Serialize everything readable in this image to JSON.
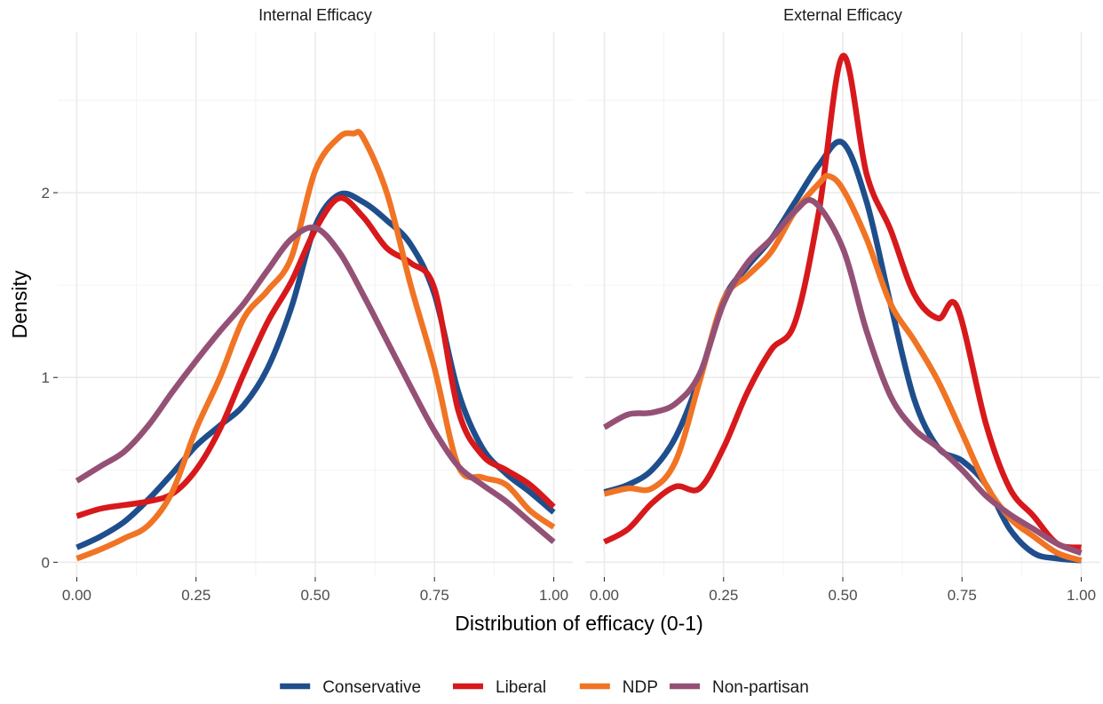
{
  "chart_data": {
    "type": "line",
    "xlabel": "Distribution of efficacy (0-1)",
    "ylabel": "Density",
    "xlim": [
      -0.04,
      1.04
    ],
    "ylim": [
      -0.08,
      2.87
    ],
    "x_ticks": [
      "0.00",
      "0.25",
      "0.50",
      "0.75",
      "1.00"
    ],
    "y_ticks": [
      "0",
      "1",
      "2"
    ],
    "grid": true,
    "legend_position": "bottom",
    "legend": [
      {
        "name": "Conservative",
        "color": "#1f4e8c"
      },
      {
        "name": "Liberal",
        "color": "#d7191c"
      },
      {
        "name": "NDP",
        "color": "#f07424"
      },
      {
        "name": "Non-partisan",
        "color": "#945175"
      }
    ],
    "panels": [
      {
        "title": "Internal Efficacy",
        "series": [
          {
            "name": "Conservative",
            "color": "#1f4e8c",
            "x": [
              0,
              0.05,
              0.1,
              0.15,
              0.2,
              0.25,
              0.3,
              0.35,
              0.4,
              0.45,
              0.5,
              0.55,
              0.6,
              0.65,
              0.7,
              0.75,
              0.8,
              0.85,
              0.9,
              0.95,
              1.0
            ],
            "y": [
              0.08,
              0.14,
              0.22,
              0.34,
              0.48,
              0.63,
              0.74,
              0.85,
              1.05,
              1.38,
              1.82,
              1.99,
              1.95,
              1.85,
              1.72,
              1.45,
              0.92,
              0.62,
              0.48,
              0.38,
              0.27
            ]
          },
          {
            "name": "Liberal",
            "color": "#d7191c",
            "x": [
              0,
              0.05,
              0.1,
              0.15,
              0.2,
              0.25,
              0.3,
              0.35,
              0.4,
              0.45,
              0.5,
              0.55,
              0.6,
              0.65,
              0.7,
              0.75,
              0.8,
              0.85,
              0.9,
              0.95,
              1.0
            ],
            "y": [
              0.25,
              0.29,
              0.31,
              0.33,
              0.37,
              0.5,
              0.72,
              1.02,
              1.3,
              1.52,
              1.8,
              1.97,
              1.87,
              1.7,
              1.62,
              1.48,
              0.82,
              0.58,
              0.5,
              0.42,
              0.3
            ]
          },
          {
            "name": "NDP",
            "color": "#f07424",
            "x": [
              0,
              0.05,
              0.1,
              0.15,
              0.2,
              0.25,
              0.3,
              0.35,
              0.4,
              0.45,
              0.5,
              0.55,
              0.58,
              0.6,
              0.65,
              0.7,
              0.75,
              0.8,
              0.85,
              0.9,
              0.95,
              1.0
            ],
            "y": [
              0.02,
              0.07,
              0.13,
              0.2,
              0.38,
              0.72,
              1.0,
              1.32,
              1.47,
              1.65,
              2.12,
              2.3,
              2.32,
              2.3,
              2.0,
              1.5,
              1.05,
              0.52,
              0.46,
              0.42,
              0.28,
              0.19
            ]
          },
          {
            "name": "Non-partisan",
            "color": "#945175",
            "x": [
              0,
              0.05,
              0.1,
              0.15,
              0.2,
              0.25,
              0.3,
              0.35,
              0.4,
              0.45,
              0.5,
              0.55,
              0.6,
              0.65,
              0.7,
              0.75,
              0.8,
              0.85,
              0.9,
              0.95,
              1.0
            ],
            "y": [
              0.44,
              0.52,
              0.6,
              0.74,
              0.92,
              1.09,
              1.25,
              1.4,
              1.58,
              1.75,
              1.81,
              1.68,
              1.45,
              1.2,
              0.95,
              0.71,
              0.52,
              0.42,
              0.33,
              0.22,
              0.11
            ]
          }
        ]
      },
      {
        "title": "External Efficacy",
        "series": [
          {
            "name": "Conservative",
            "color": "#1f4e8c",
            "x": [
              0,
              0.05,
              0.1,
              0.15,
              0.2,
              0.25,
              0.3,
              0.35,
              0.4,
              0.45,
              0.5,
              0.55,
              0.6,
              0.65,
              0.7,
              0.75,
              0.8,
              0.85,
              0.9,
              0.95,
              1.0
            ],
            "y": [
              0.38,
              0.42,
              0.5,
              0.68,
              1.0,
              1.42,
              1.6,
              1.75,
              1.95,
              2.15,
              2.27,
              1.95,
              1.4,
              0.88,
              0.62,
              0.55,
              0.42,
              0.18,
              0.05,
              0.02,
              0.01
            ]
          },
          {
            "name": "Liberal",
            "color": "#d7191c",
            "x": [
              0,
              0.05,
              0.1,
              0.15,
              0.2,
              0.25,
              0.3,
              0.35,
              0.4,
              0.45,
              0.5,
              0.55,
              0.6,
              0.65,
              0.7,
              0.74,
              0.8,
              0.85,
              0.9,
              0.95,
              1.0
            ],
            "y": [
              0.11,
              0.18,
              0.32,
              0.41,
              0.4,
              0.62,
              0.92,
              1.15,
              1.3,
              1.9,
              2.74,
              2.1,
              1.8,
              1.45,
              1.32,
              1.38,
              0.75,
              0.4,
              0.25,
              0.1,
              0.08
            ]
          },
          {
            "name": "NDP",
            "color": "#f07424",
            "x": [
              0,
              0.05,
              0.1,
              0.15,
              0.2,
              0.25,
              0.3,
              0.35,
              0.4,
              0.45,
              0.47,
              0.5,
              0.55,
              0.6,
              0.65,
              0.7,
              0.75,
              0.8,
              0.85,
              0.9,
              0.95,
              1.0
            ],
            "y": [
              0.37,
              0.4,
              0.4,
              0.55,
              0.98,
              1.42,
              1.55,
              1.68,
              1.9,
              2.05,
              2.09,
              2.02,
              1.75,
              1.4,
              1.2,
              0.98,
              0.7,
              0.42,
              0.24,
              0.14,
              0.05,
              0.01
            ]
          },
          {
            "name": "Non-partisan",
            "color": "#945175",
            "x": [
              0,
              0.05,
              0.1,
              0.15,
              0.2,
              0.25,
              0.3,
              0.35,
              0.4,
              0.44,
              0.5,
              0.55,
              0.6,
              0.65,
              0.7,
              0.75,
              0.8,
              0.85,
              0.9,
              0.95,
              1.0
            ],
            "y": [
              0.73,
              0.8,
              0.81,
              0.86,
              1.02,
              1.4,
              1.62,
              1.75,
              1.9,
              1.95,
              1.7,
              1.25,
              0.9,
              0.72,
              0.62,
              0.5,
              0.36,
              0.26,
              0.18,
              0.1,
              0.05
            ]
          }
        ]
      }
    ]
  }
}
